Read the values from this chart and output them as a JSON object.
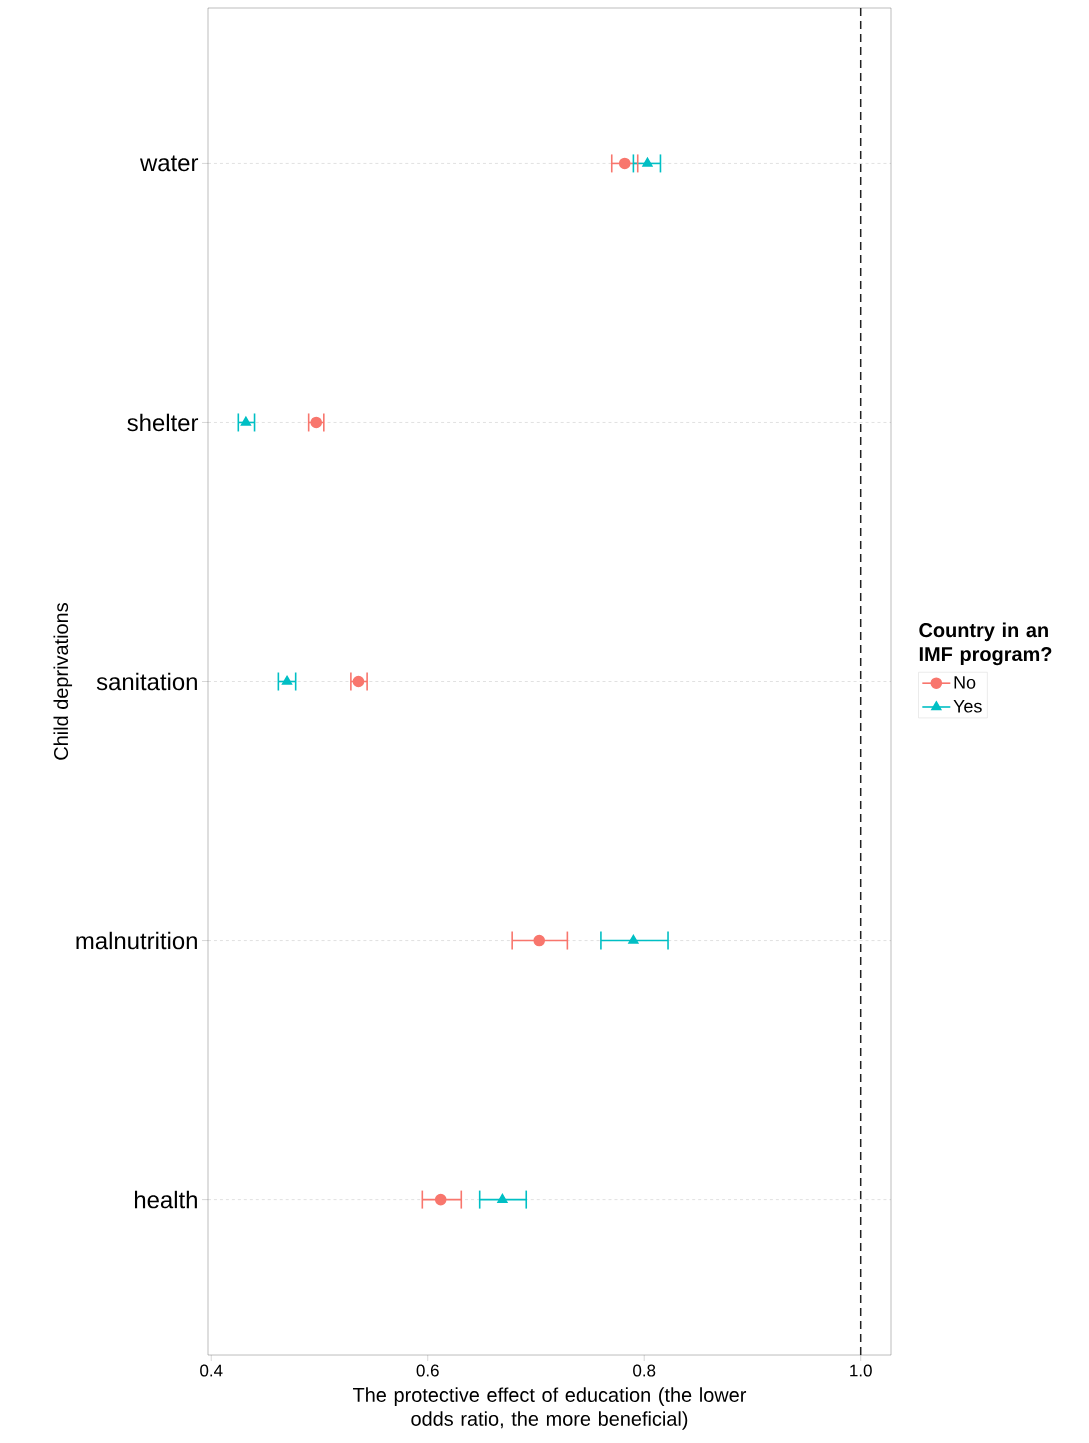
{
  "chart_data": {
    "type": "scatter",
    "orientation": "horizontal",
    "xlabel": "The protective effect of education (the lower odds ratio, the more beneficial)",
    "ylabel": "Child deprivations",
    "legend_title": "Country in an IMF program?",
    "legend": "right",
    "grid": "y",
    "categories": [
      "water",
      "shelter",
      "sanitation",
      "malnutrition",
      "health"
    ],
    "xlim": [
      0.397,
      1.028
    ],
    "xticks": [
      0.4,
      0.6,
      0.8,
      {
        "value": 1,
        "label": "1.0"
      }
    ],
    "ref_lines": [
      {
        "axis": "x",
        "value": 1,
        "color": "#222222",
        "line_style": "dashed"
      }
    ],
    "series": [
      {
        "name": "No",
        "color": "#f8766d",
        "marker": "circle",
        "values": [
          0.782,
          0.497,
          0.536,
          0.703,
          0.612
        ],
        "errors": [
          [
            0.77,
            0.794
          ],
          [
            0.49,
            0.504
          ],
          [
            0.529,
            0.544
          ],
          [
            0.678,
            0.729
          ],
          [
            0.595,
            0.631
          ]
        ]
      },
      {
        "name": "Yes",
        "color": "#00bfc4",
        "marker": "triangle",
        "values": [
          0.803,
          0.432,
          0.47,
          0.79,
          0.669
        ],
        "errors": [
          [
            0.79,
            0.815
          ],
          [
            0.425,
            0.44
          ],
          [
            0.462,
            0.478
          ],
          [
            0.76,
            0.822
          ],
          [
            0.648,
            0.691
          ]
        ]
      }
    ]
  }
}
